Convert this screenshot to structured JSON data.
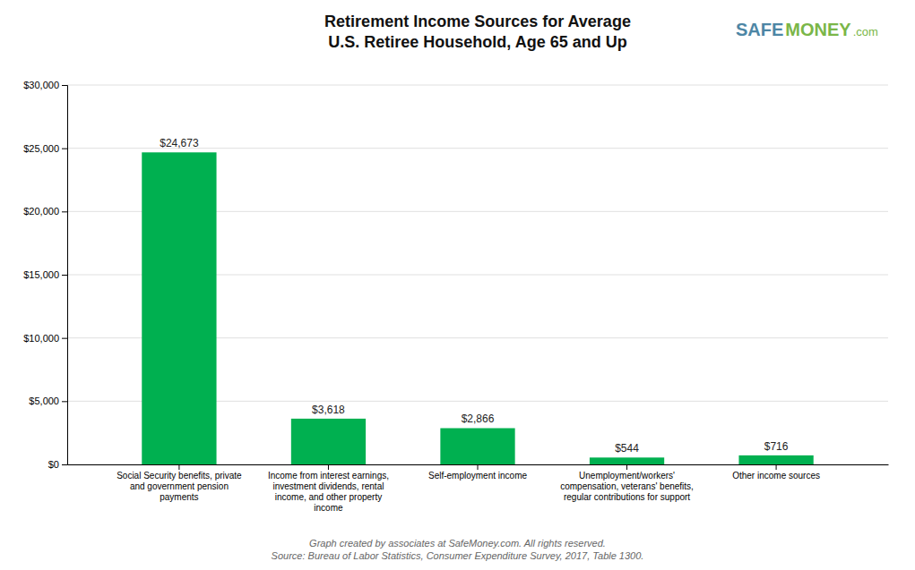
{
  "chart_data": {
    "type": "bar",
    "title": "Retirement Income Sources for Average\nU.S. Retiree Household, Age 65 and Up",
    "categories": [
      "Social Security benefits, private\nand government pension\npayments",
      "Income from interest earnings,\ninvestment dividends, rental\nincome, and other property\nincome",
      "Self-employment income",
      "Unemployment/workers'\ncompensation, veterans' benefits,\nregular contributions for support",
      "Other income sources"
    ],
    "values": [
      24673,
      3618,
      2866,
      544,
      716
    ],
    "value_labels": [
      "$24,673",
      "$3,618",
      "$2,866",
      "$544",
      "$716"
    ],
    "data_labels": true,
    "color": "#00b050",
    "ylim": [
      0,
      30000
    ],
    "yticks": [
      {
        "value": 0,
        "label": "$0"
      },
      {
        "value": 5000,
        "label": "$5,000"
      },
      {
        "value": 10000,
        "label": "$10,000"
      },
      {
        "value": 15000,
        "label": "$15,000"
      },
      {
        "value": 20000,
        "label": "$20,000"
      },
      {
        "value": 25000,
        "label": "$25,000"
      },
      {
        "value": 30000,
        "label": "$30,000"
      }
    ],
    "grid": true,
    "annotations": [
      {
        "text": "Graph created by associates at SafeMoney.com. All rights reserved."
      },
      {
        "text": "Source: Bureau of Labor Statistics, Consumer Expenditure Survey, 2017, Table 1300."
      },
      {
        "text": "SAFE",
        "color": "#4d86a5"
      },
      {
        "text": "MONEY",
        "color": "#7ab648"
      },
      {
        "text": ".com",
        "color": "#7ab648"
      }
    ]
  }
}
